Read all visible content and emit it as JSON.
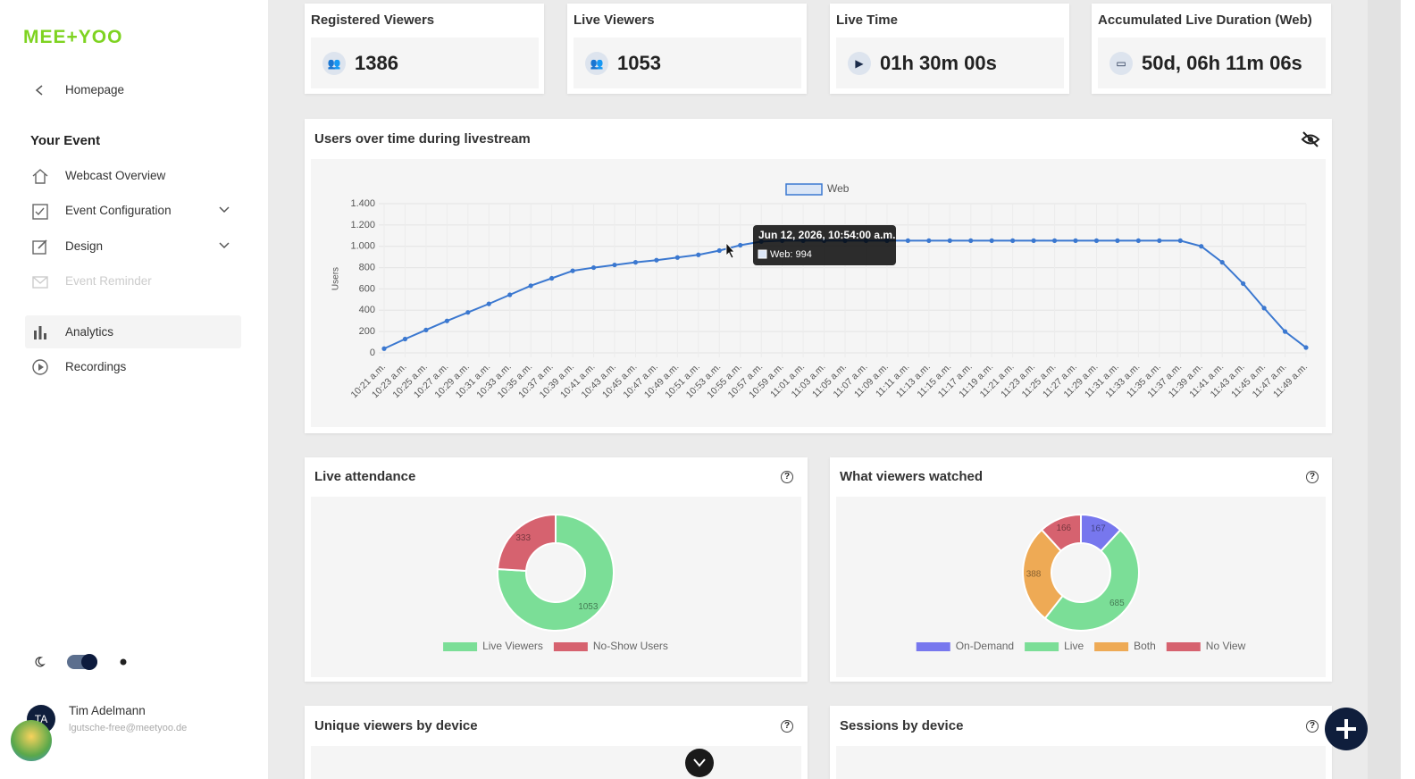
{
  "sidebar": {
    "logo": "MEE+YOO",
    "back": "Homepage",
    "section": "Your Event",
    "nav": [
      "Webcast Overview",
      "Event Configuration",
      "Design",
      "Event Reminder",
      "Analytics",
      "Recordings"
    ],
    "user": {
      "initials": "TA",
      "name": "Tim Adelmann",
      "email": "lgutsche-free@meetyoo.de"
    }
  },
  "stats": [
    {
      "label": "Registered Viewers",
      "value": 1386
    },
    {
      "label": "Live Viewers",
      "value": 1053
    },
    {
      "label": "Live Time",
      "value": "01h 30m 00s"
    },
    {
      "label": "Accumulated Live Duration (Web)",
      "value": "50d, 06h 11m 06s"
    }
  ],
  "cards": [
    "Unique viewers by device",
    "Sessions by device"
  ],
  "chart_data": [
    {
      "type": "line",
      "title": "Users over time during livestream",
      "y_label": "Users",
      "categories": [
        "10:21 a.m.",
        "10:23 a.m.",
        "10:25 a.m.",
        "10:27 a.m.",
        "10:29 a.m.",
        "10:31 a.m.",
        "10:33 a.m.",
        "10:35 a.m.",
        "10:37 a.m.",
        "10:39 a.m.",
        "10:41 a.m.",
        "10:43 a.m.",
        "10:45 a.m.",
        "10:47 a.m.",
        "10:49 a.m.",
        "10:51 a.m.",
        "10:53 a.m.",
        "10:55 a.m.",
        "10:57 a.m.",
        "10:59 a.m.",
        "11:01 a.m.",
        "11:03 a.m.",
        "11:05 a.m.",
        "11:07 a.m.",
        "11:09 a.m.",
        "11:11 a.m.",
        "11:13 a.m.",
        "11:15 a.m.",
        "11:17 a.m.",
        "11:19 a.m.",
        "11:21 a.m.",
        "11:23 a.m.",
        "11:25 a.m.",
        "11:27 a.m.",
        "11:29 a.m.",
        "11:31 a.m.",
        "11:33 a.m.",
        "11:35 a.m.",
        "11:37 a.m.",
        "11:39 a.m.",
        "11:41 a.m.",
        "11:43 a.m.",
        "11:45 a.m.",
        "11:47 a.m.",
        "11:49 a.m."
      ],
      "series": [
        {
          "name": "Web",
          "color": "#3b78d0",
          "values": [
            40,
            130,
            215,
            300,
            380,
            460,
            545,
            630,
            700,
            770,
            800,
            825,
            850,
            870,
            895,
            920,
            960,
            1010,
            1045,
            1053,
            1053,
            1053,
            1053,
            1053,
            1053,
            1053,
            1053,
            1053,
            1053,
            1053,
            1053,
            1053,
            1053,
            1053,
            1053,
            1053,
            1053,
            1053,
            1053,
            1000,
            850,
            650,
            420,
            200,
            50
          ]
        }
      ],
      "ylim": [
        0,
        1400
      ],
      "yticks": [
        0,
        200,
        400,
        600,
        800,
        {
          "value": 1000,
          "label": "1.000"
        },
        {
          "value": 1200,
          "label": "1.200"
        },
        {
          "value": 1400,
          "label": "1.400"
        }
      ],
      "grid": true,
      "legend": "top",
      "tooltip": {
        "title": "Jun 12, 2026, 10:54:00 a.m.",
        "body": "Web: 994"
      }
    },
    {
      "type": "donut",
      "title": "Live attendance",
      "categories": [
        "Live Viewers",
        "No-Show Users"
      ],
      "values": [
        1053,
        333
      ],
      "colors": [
        "#7bde97",
        "#d6626f"
      ],
      "legend": "bottom"
    },
    {
      "type": "donut",
      "title": "What viewers watched",
      "categories": [
        "On-Demand",
        "Live",
        "Both",
        "No View"
      ],
      "values": [
        167,
        685,
        388,
        166
      ],
      "colors": [
        "#7777ee",
        "#7bde97",
        "#eeaa55",
        "#d6626f"
      ],
      "legend": "bottom"
    }
  ]
}
